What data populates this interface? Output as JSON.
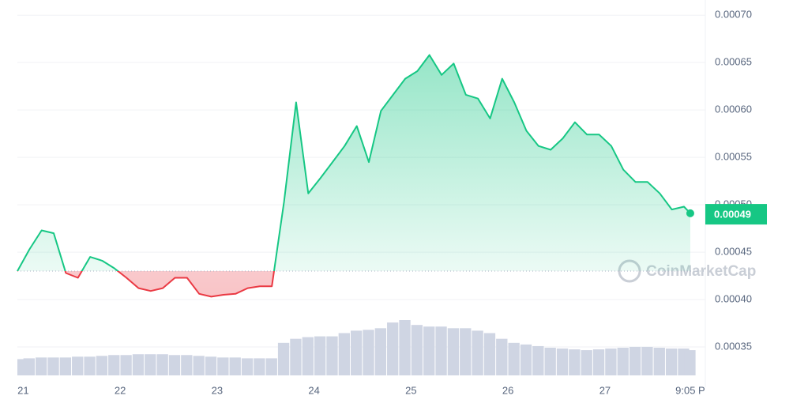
{
  "chart_data": {
    "type": "line",
    "x": [
      20.94,
      21.065,
      21.19,
      21.315,
      21.44,
      21.565,
      21.69,
      21.815,
      21.94,
      22.065,
      22.19,
      22.315,
      22.44,
      22.565,
      22.69,
      22.815,
      22.94,
      23.065,
      23.19,
      23.315,
      23.44,
      23.565,
      23.69,
      23.815,
      23.94,
      24.065,
      24.19,
      24.315,
      24.44,
      24.565,
      24.69,
      24.815,
      24.94,
      25.065,
      25.19,
      25.315,
      25.44,
      25.565,
      25.69,
      25.815,
      25.94,
      26.065,
      26.19,
      26.315,
      26.44,
      26.565,
      26.69,
      26.815,
      26.94,
      27.065,
      27.19,
      27.315,
      27.44,
      27.565,
      27.69,
      27.815,
      27.88
    ],
    "series": [
      {
        "color": "#16c784",
        "color_below": "#ea3943",
        "values": [
          0.00043,
          0.000453,
          0.000473,
          0.00047,
          0.000428,
          0.000423,
          0.000445,
          0.000441,
          0.000433,
          0.000423,
          0.000412,
          0.000409,
          0.000412,
          0.000423,
          0.000423,
          0.000406,
          0.000403,
          0.000405,
          0.000406,
          0.000412,
          0.000414,
          0.000414,
          0.000503,
          0.000608,
          0.000512,
          0.000528,
          0.000545,
          0.000562,
          0.000583,
          0.000545,
          0.000599,
          0.000616,
          0.000633,
          0.000641,
          0.000658,
          0.000637,
          0.000649,
          0.000616,
          0.000612,
          0.000591,
          0.000633,
          0.000608,
          0.000578,
          0.000562,
          0.000558,
          0.00057,
          0.000587,
          0.000574,
          0.000574,
          0.000562,
          0.000537,
          0.000524,
          0.000524,
          0.000512,
          0.000495,
          0.000498,
          0.000491
        ]
      }
    ],
    "volume": {
      "color": "#cfd5e3",
      "values": [
        20,
        21,
        22,
        22,
        22,
        23,
        23,
        24,
        25,
        25,
        26,
        26,
        26,
        25,
        25,
        24,
        23,
        22,
        22,
        21,
        21,
        21,
        40,
        45,
        47,
        48,
        48,
        52,
        55,
        56,
        58,
        65,
        68,
        62,
        60,
        60,
        58,
        58,
        55,
        52,
        45,
        40,
        38,
        36,
        34,
        33,
        32,
        31,
        32,
        33,
        34,
        35,
        35,
        34,
        33,
        33,
        31
      ]
    },
    "baseline": 0.00043,
    "current_price": 0.00049,
    "xlim": [
      20.94,
      27.97
    ],
    "xticks": [
      21,
      22,
      23,
      24,
      25,
      26,
      27,
      {
        "value": 27.88,
        "label": "9:05 P"
      }
    ],
    "ylim": [
      0.00032,
      0.000716
    ],
    "yticks": [
      0.00035,
      {
        "value": 0.0004,
        "label": "0.00040"
      },
      0.00045,
      {
        "value": 0.0005,
        "label": "0.00050"
      },
      0.00055,
      {
        "value": 0.0006,
        "label": "0.00060"
      },
      0.00065,
      {
        "value": 0.0007,
        "label": "0.00070"
      }
    ],
    "grid": true,
    "watermark": "CoinMarketCap"
  }
}
